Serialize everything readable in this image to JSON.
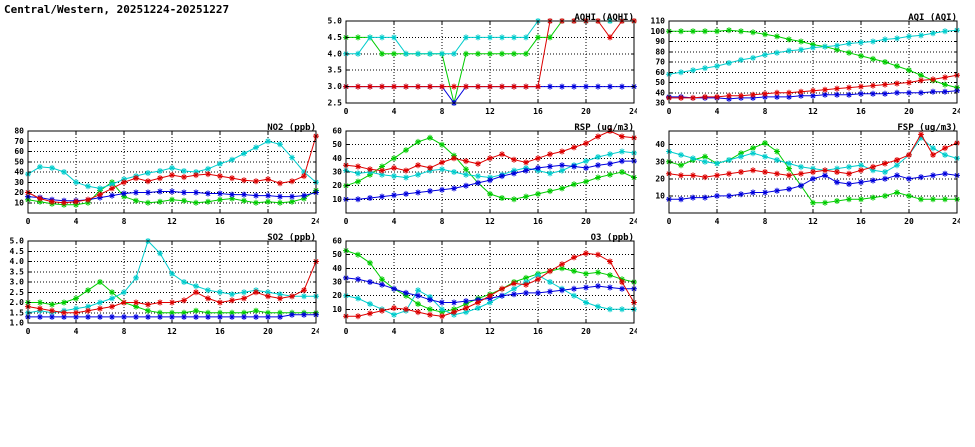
{
  "page_title": "Central/Western, 20251224-20251227",
  "station": "Central/Western",
  "date_range": "20251224-20251227",
  "chart_data": [
    {
      "id": "aqhi",
      "type": "line",
      "title": "AQHI (AQHI)",
      "xlim": [
        0,
        24
      ],
      "xticks": [
        0,
        4,
        8,
        12,
        16,
        20,
        24
      ],
      "ylim": [
        2.5,
        5.0
      ],
      "yticks": [
        2.5,
        3.0,
        3.5,
        4.0,
        4.5,
        5.0
      ],
      "ytick_labels": [
        "2.5",
        "3.0",
        "3.5",
        "4.0",
        "4.5",
        "5.0"
      ],
      "grid": "dotted",
      "marker": "asterisk",
      "legend": "none",
      "series": [
        {
          "name": "green",
          "color": "#00cc00",
          "values": [
            4.5,
            4.5,
            4.5,
            4,
            4,
            4,
            4,
            4,
            4,
            2.5,
            4,
            4,
            4,
            4,
            4,
            4,
            4.5,
            4.5,
            5,
            5,
            5,
            5,
            5,
            5,
            5
          ]
        },
        {
          "name": "cyan",
          "color": "#00cccc",
          "values": [
            4,
            4,
            4.5,
            4.5,
            4.5,
            4,
            4,
            4,
            4,
            4,
            4.5,
            4.5,
            4.5,
            4.5,
            4.5,
            4.5,
            5,
            5,
            5,
            5,
            5,
            5,
            5,
            5,
            5
          ]
        },
        {
          "name": "blue",
          "color": "#0000dd",
          "values": [
            3,
            3,
            3,
            3,
            3,
            3,
            3,
            3,
            3,
            2.5,
            3,
            3,
            3,
            3,
            3,
            3,
            3,
            3,
            3,
            3,
            3,
            3,
            3,
            3,
            3
          ]
        },
        {
          "name": "red",
          "color": "#dd0000",
          "values": [
            3,
            3,
            3,
            3,
            3,
            3,
            3,
            3,
            3,
            3,
            3,
            3,
            3,
            3,
            3,
            3,
            3,
            5,
            5,
            5,
            5,
            5,
            4.5,
            5,
            5
          ]
        }
      ]
    },
    {
      "id": "aqi",
      "type": "line",
      "title": "AQI (AQI)",
      "xlim": [
        0,
        24
      ],
      "xticks": [
        0,
        4,
        8,
        12,
        16,
        20,
        24
      ],
      "ylim": [
        30,
        110
      ],
      "yticks": [
        30,
        40,
        50,
        60,
        70,
        80,
        90,
        100,
        110
      ],
      "ytick_labels": [
        "30",
        "40",
        "50",
        "60",
        "70",
        "80",
        "90",
        "100",
        "110"
      ],
      "grid": "dotted",
      "marker": "asterisk",
      "legend": "none",
      "series": [
        {
          "name": "green",
          "color": "#00cc00",
          "values": [
            100,
            100,
            100,
            100,
            100,
            101,
            100,
            99,
            97,
            95,
            92,
            90,
            87,
            85,
            82,
            79,
            76,
            73,
            70,
            66,
            62,
            57,
            52,
            48,
            45
          ]
        },
        {
          "name": "cyan",
          "color": "#00cccc",
          "values": [
            58,
            60,
            62,
            64,
            66,
            69,
            72,
            74,
            77,
            79,
            81,
            82,
            84,
            85,
            86,
            88,
            89,
            90,
            92,
            93,
            95,
            96,
            98,
            100,
            101
          ]
        },
        {
          "name": "blue",
          "color": "#0000dd",
          "values": [
            36,
            36,
            35,
            35,
            35,
            34,
            35,
            35,
            36,
            36,
            36,
            37,
            37,
            38,
            38,
            38,
            39,
            39,
            39,
            40,
            40,
            40,
            41,
            41,
            42
          ]
        },
        {
          "name": "red",
          "color": "#dd0000",
          "values": [
            35,
            35,
            35,
            36,
            36,
            37,
            37,
            38,
            39,
            40,
            40,
            41,
            42,
            43,
            44,
            45,
            46,
            47,
            48,
            49,
            50,
            52,
            53,
            55,
            57
          ]
        }
      ]
    },
    {
      "id": "no2",
      "type": "line",
      "title": "NO2 (ppb)",
      "xlim": [
        0,
        24
      ],
      "xticks": [
        0,
        4,
        8,
        12,
        16,
        20,
        24
      ],
      "ylim": [
        0,
        80
      ],
      "yticks": [
        10,
        20,
        30,
        40,
        50,
        60,
        70,
        80
      ],
      "ytick_labels": [
        "10",
        "20",
        "30",
        "40",
        "50",
        "60",
        "70",
        "80"
      ],
      "grid": "dotted",
      "marker": "asterisk",
      "legend": "none",
      "series": [
        {
          "name": "green",
          "color": "#00cc00",
          "values": [
            13,
            11,
            9,
            8,
            8,
            10,
            22,
            30,
            16,
            12,
            10,
            11,
            13,
            12,
            10,
            11,
            13,
            14,
            12,
            10,
            11,
            10,
            11,
            14,
            22
          ]
        },
        {
          "name": "cyan",
          "color": "#00cccc",
          "values": [
            38,
            45,
            44,
            40,
            30,
            26,
            24,
            28,
            33,
            36,
            39,
            41,
            44,
            41,
            40,
            43,
            48,
            52,
            58,
            64,
            70,
            67,
            54,
            40,
            30
          ]
        },
        {
          "name": "blue",
          "color": "#0000dd",
          "values": [
            16,
            15,
            13,
            12,
            12,
            13,
            15,
            17,
            19,
            20,
            20,
            21,
            21,
            20,
            20,
            19,
            19,
            18,
            18,
            17,
            17,
            16,
            16,
            17,
            20
          ]
        },
        {
          "name": "red",
          "color": "#dd0000",
          "values": [
            20,
            14,
            11,
            10,
            11,
            13,
            18,
            24,
            30,
            34,
            31,
            34,
            37,
            35,
            37,
            38,
            36,
            34,
            32,
            31,
            33,
            29,
            31,
            36,
            75
          ]
        }
      ]
    },
    {
      "id": "rsp",
      "type": "line",
      "title": "RSP (ug/m3)",
      "xlim": [
        0,
        24
      ],
      "xticks": [
        0,
        4,
        8,
        12,
        16,
        20,
        24
      ],
      "ylim": [
        0,
        60
      ],
      "yticks": [
        10,
        20,
        30,
        40,
        50,
        60
      ],
      "ytick_labels": [
        "10",
        "20",
        "30",
        "40",
        "50",
        "60"
      ],
      "grid": "dotted",
      "marker": "asterisk",
      "legend": "none",
      "series": [
        {
          "name": "green",
          "color": "#00cc00",
          "values": [
            20,
            23,
            28,
            34,
            40,
            46,
            52,
            55,
            50,
            42,
            32,
            22,
            14,
            11,
            10,
            12,
            14,
            16,
            18,
            21,
            23,
            26,
            28,
            30,
            26
          ]
        },
        {
          "name": "cyan",
          "color": "#00cccc",
          "values": [
            31,
            29,
            30,
            28,
            27,
            26,
            28,
            31,
            32,
            30,
            28,
            27,
            26,
            28,
            31,
            33,
            31,
            29,
            31,
            35,
            38,
            41,
            43,
            45,
            44
          ]
        },
        {
          "name": "blue",
          "color": "#0000dd",
          "values": [
            10,
            10,
            11,
            12,
            13,
            14,
            15,
            16,
            17,
            18,
            20,
            22,
            24,
            27,
            29,
            31,
            33,
            34,
            35,
            34,
            33,
            35,
            36,
            38,
            38
          ]
        },
        {
          "name": "red",
          "color": "#dd0000",
          "values": [
            35,
            34,
            32,
            31,
            33,
            31,
            35,
            33,
            37,
            40,
            38,
            36,
            40,
            43,
            39,
            37,
            40,
            43,
            45,
            48,
            51,
            56,
            60,
            56,
            55
          ]
        }
      ]
    },
    {
      "id": "fsp",
      "type": "line",
      "title": "FSP (ug/m3)",
      "xlim": [
        0,
        24
      ],
      "xticks": [
        0,
        4,
        8,
        12,
        16,
        20,
        24
      ],
      "ylim": [
        0,
        48
      ],
      "yticks": [
        10,
        20,
        30,
        40
      ],
      "ytick_labels": [
        "10",
        "20",
        "30",
        "40"
      ],
      "grid": "dotted",
      "marker": "asterisk",
      "legend": "none",
      "series": [
        {
          "name": "green",
          "color": "#00cc00",
          "values": [
            30,
            28,
            31,
            33,
            29,
            31,
            35,
            38,
            41,
            36,
            26,
            16,
            6,
            6,
            7,
            8,
            8,
            9,
            10,
            12,
            10,
            8,
            8,
            8,
            8
          ]
        },
        {
          "name": "cyan",
          "color": "#00cccc",
          "values": [
            36,
            34,
            32,
            30,
            29,
            31,
            33,
            35,
            33,
            31,
            29,
            27,
            26,
            25,
            26,
            27,
            28,
            25,
            24,
            28,
            34,
            44,
            38,
            34,
            32
          ]
        },
        {
          "name": "blue",
          "color": "#0000dd",
          "values": [
            8,
            8,
            9,
            9,
            10,
            10,
            11,
            12,
            12,
            13,
            14,
            16,
            20,
            22,
            18,
            17,
            18,
            19,
            20,
            22,
            20,
            21,
            22,
            23,
            22
          ]
        },
        {
          "name": "red",
          "color": "#dd0000",
          "values": [
            23,
            22,
            22,
            21,
            22,
            23,
            24,
            25,
            24,
            23,
            22,
            23,
            24,
            25,
            24,
            23,
            25,
            27,
            29,
            31,
            34,
            46,
            34,
            38,
            41
          ]
        }
      ]
    },
    {
      "id": "so2",
      "type": "line",
      "title": "SO2 (ppb)",
      "xlim": [
        0,
        24
      ],
      "xticks": [
        0,
        4,
        8,
        12,
        16,
        20,
        24
      ],
      "ylim": [
        1.0,
        5.0
      ],
      "yticks": [
        1.0,
        1.5,
        2.0,
        2.5,
        3.0,
        3.5,
        4.0,
        4.5,
        5.0
      ],
      "ytick_labels": [
        "1.0",
        "1.5",
        "2.0",
        "2.5",
        "3.0",
        "3.5",
        "4.0",
        "4.5",
        "5.0"
      ],
      "grid": "dotted",
      "marker": "asterisk",
      "legend": "none",
      "series": [
        {
          "name": "green",
          "color": "#00cc00",
          "values": [
            2,
            2,
            1.9,
            2,
            2.2,
            2.6,
            3,
            2.5,
            2,
            1.8,
            1.6,
            1.5,
            1.5,
            1.5,
            1.6,
            1.5,
            1.5,
            1.5,
            1.5,
            1.6,
            1.5,
            1.5,
            1.5,
            1.5,
            1.5
          ]
        },
        {
          "name": "cyan",
          "color": "#00cccc",
          "values": [
            1.5,
            1.6,
            1.5,
            1.6,
            1.7,
            1.8,
            2,
            2.2,
            2.5,
            3.2,
            5,
            4.4,
            3.4,
            3,
            2.8,
            2.6,
            2.5,
            2.4,
            2.5,
            2.6,
            2.5,
            2.4,
            2.3,
            2.3,
            2.3
          ]
        },
        {
          "name": "blue",
          "color": "#0000dd",
          "values": [
            1.3,
            1.3,
            1.3,
            1.3,
            1.3,
            1.3,
            1.3,
            1.3,
            1.3,
            1.3,
            1.3,
            1.3,
            1.3,
            1.3,
            1.3,
            1.3,
            1.3,
            1.3,
            1.3,
            1.3,
            1.3,
            1.3,
            1.4,
            1.4,
            1.4
          ]
        },
        {
          "name": "red",
          "color": "#dd0000",
          "values": [
            1.8,
            1.7,
            1.6,
            1.5,
            1.5,
            1.6,
            1.7,
            1.8,
            2,
            2,
            1.9,
            2,
            2,
            2.1,
            2.5,
            2.2,
            2,
            2.1,
            2.2,
            2.5,
            2.3,
            2.2,
            2.3,
            2.6,
            4
          ]
        }
      ]
    },
    {
      "id": "o3",
      "type": "line",
      "title": "O3 (ppb)",
      "xlim": [
        0,
        24
      ],
      "xticks": [
        0,
        4,
        8,
        12,
        16,
        20,
        24
      ],
      "ylim": [
        0,
        60
      ],
      "yticks": [
        10,
        20,
        30,
        40,
        50,
        60
      ],
      "ytick_labels": [
        "10",
        "20",
        "30",
        "40",
        "50",
        "60"
      ],
      "grid": "dotted",
      "marker": "asterisk",
      "legend": "none",
      "series": [
        {
          "name": "green",
          "color": "#00cc00",
          "values": [
            53,
            50,
            44,
            32,
            25,
            20,
            14,
            10,
            8,
            10,
            14,
            18,
            21,
            25,
            30,
            33,
            36,
            38,
            40,
            38,
            36,
            37,
            35,
            32,
            30
          ]
        },
        {
          "name": "cyan",
          "color": "#00cccc",
          "values": [
            20,
            18,
            14,
            10,
            6,
            9,
            24,
            19,
            10,
            6,
            8,
            11,
            15,
            20,
            25,
            30,
            35,
            30,
            25,
            20,
            15,
            12,
            10,
            10,
            10
          ]
        },
        {
          "name": "blue",
          "color": "#0000dd",
          "values": [
            33,
            32,
            30,
            28,
            25,
            22,
            20,
            17,
            15,
            15,
            16,
            17,
            18,
            20,
            21,
            22,
            22,
            23,
            24,
            25,
            26,
            27,
            26,
            25,
            25
          ]
        },
        {
          "name": "red",
          "color": "#dd0000",
          "values": [
            5,
            5,
            7,
            9,
            11,
            10,
            8,
            6,
            5,
            8,
            11,
            15,
            20,
            25,
            29,
            28,
            32,
            38,
            43,
            48,
            51,
            50,
            45,
            30,
            15
          ]
        }
      ]
    }
  ]
}
